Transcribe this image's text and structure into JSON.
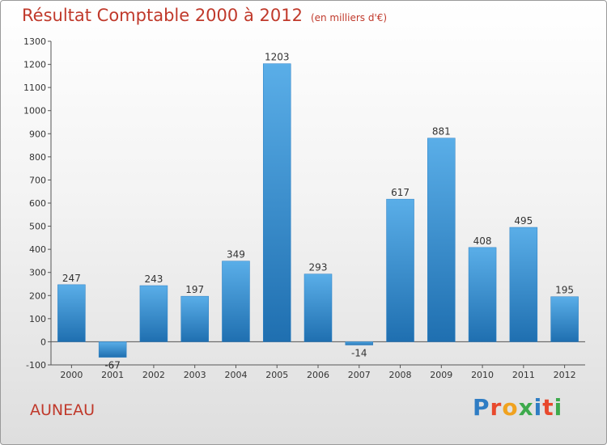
{
  "title": "Résultat Comptable 2000 à 2012",
  "subtitle": "(en milliers d'€)",
  "location": "AUNEAU",
  "logo": {
    "text": "Proxiti",
    "colors": [
      "#2f7dc4",
      "#e8492d",
      "#f0a21f",
      "#3daa4c",
      "#2f7dc4",
      "#e8492d",
      "#3daa4c"
    ]
  },
  "chart_data": {
    "type": "bar",
    "categories": [
      "2000",
      "2001",
      "2002",
      "2003",
      "2004",
      "2005",
      "2006",
      "2007",
      "2008",
      "2009",
      "2010",
      "2011",
      "2012"
    ],
    "values": [
      247,
      -67,
      243,
      197,
      349,
      1203,
      293,
      -14,
      617,
      881,
      408,
      495,
      195
    ],
    "ylim": [
      -100,
      1300
    ],
    "yticks": [
      -100,
      0,
      100,
      200,
      300,
      400,
      500,
      600,
      700,
      800,
      900,
      1000,
      1100,
      1200,
      1300
    ],
    "grid": false,
    "bar_color": "#3d97dc"
  }
}
